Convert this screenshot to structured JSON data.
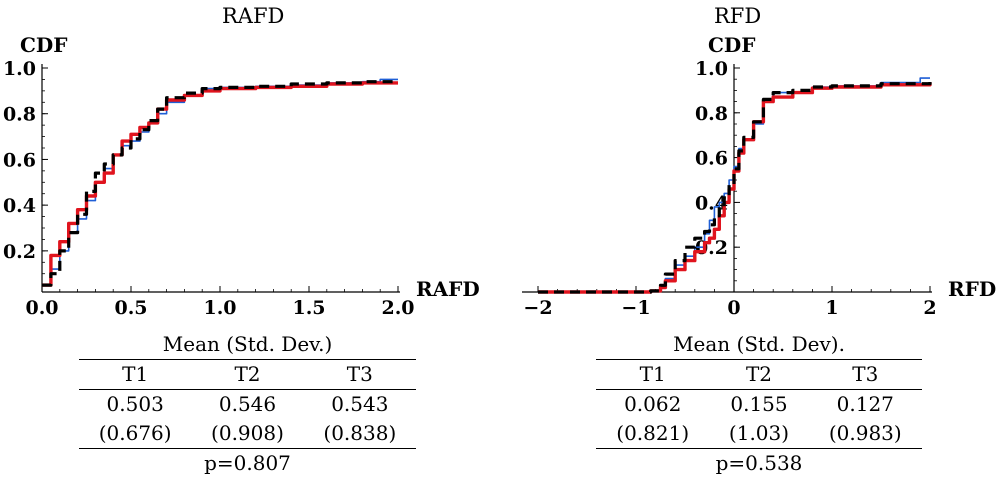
{
  "colors": {
    "series_a": "#1f5fd6",
    "series_b": "#e0141e",
    "series_c": "#000000"
  },
  "chart_data": [
    {
      "type": "line",
      "title": "RAFD",
      "xlabel": "RAFD",
      "ylabel": "CDF",
      "xlim": [
        0,
        2
      ],
      "ylim": [
        0.02,
        1.0
      ],
      "x_ticks": [
        "0.0",
        "0.5",
        "1.0",
        "1.5",
        "2.0"
      ],
      "y_ticks": [
        "0.2",
        "0.4",
        "0.6",
        "0.8",
        "1.0"
      ],
      "series": [
        {
          "color": "#1f5fd6",
          "style": "solid-thin",
          "x": [
            0,
            0.05,
            0.1,
            0.15,
            0.2,
            0.25,
            0.3,
            0.35,
            0.4,
            0.45,
            0.5,
            0.55,
            0.6,
            0.65,
            0.7,
            0.8,
            0.9,
            1.0,
            1.2,
            1.4,
            1.6,
            1.8,
            1.9,
            2.0
          ],
          "y": [
            0.05,
            0.12,
            0.2,
            0.28,
            0.34,
            0.42,
            0.5,
            0.56,
            0.62,
            0.66,
            0.68,
            0.72,
            0.76,
            0.8,
            0.85,
            0.88,
            0.91,
            0.915,
            0.92,
            0.925,
            0.935,
            0.94,
            0.95,
            0.95
          ]
        },
        {
          "color": "#e0141e",
          "style": "solid-thick",
          "x": [
            0,
            0.05,
            0.1,
            0.15,
            0.2,
            0.25,
            0.3,
            0.35,
            0.4,
            0.45,
            0.5,
            0.55,
            0.6,
            0.65,
            0.7,
            0.8,
            0.9,
            1.0,
            1.2,
            1.4,
            1.6,
            1.8,
            2.0
          ],
          "y": [
            0.05,
            0.18,
            0.24,
            0.32,
            0.38,
            0.44,
            0.5,
            0.54,
            0.62,
            0.68,
            0.71,
            0.74,
            0.76,
            0.82,
            0.86,
            0.88,
            0.9,
            0.91,
            0.915,
            0.92,
            0.93,
            0.935,
            0.935
          ]
        },
        {
          "color": "#000000",
          "style": "dashed",
          "x": [
            0,
            0.05,
            0.1,
            0.15,
            0.2,
            0.25,
            0.3,
            0.35,
            0.4,
            0.45,
            0.5,
            0.55,
            0.6,
            0.65,
            0.7,
            0.8,
            0.9,
            1.0,
            1.2,
            1.4,
            1.6,
            1.8,
            2.0
          ],
          "y": [
            0.05,
            0.1,
            0.2,
            0.28,
            0.36,
            0.46,
            0.54,
            0.58,
            0.62,
            0.65,
            0.69,
            0.73,
            0.77,
            0.82,
            0.87,
            0.89,
            0.91,
            0.915,
            0.92,
            0.93,
            0.935,
            0.94,
            0.94
          ]
        }
      ]
    },
    {
      "type": "line",
      "title": "RFD",
      "xlabel": "RFD",
      "ylabel": "CDF",
      "xlim": [
        -2,
        2
      ],
      "ylim": [
        0.0,
        1.0
      ],
      "x_ticks": [
        "−2",
        "−1",
        "0",
        "1",
        "2"
      ],
      "y_ticks": [
        "0.2",
        "0.4",
        "0.6",
        "0.8",
        "1.0"
      ],
      "series": [
        {
          "color": "#1f5fd6",
          "style": "solid-thin",
          "x": [
            -2,
            -1.5,
            -1,
            -0.85,
            -0.75,
            -0.7,
            -0.6,
            -0.5,
            -0.4,
            -0.3,
            -0.25,
            -0.2,
            -0.15,
            -0.1,
            -0.05,
            0,
            0.05,
            0.1,
            0.2,
            0.3,
            0.4,
            0.6,
            0.8,
            1.0,
            1.5,
            1.9,
            2.0
          ],
          "y": [
            0,
            0,
            0,
            0.005,
            0.02,
            0.06,
            0.12,
            0.16,
            0.2,
            0.26,
            0.32,
            0.38,
            0.4,
            0.44,
            0.5,
            0.56,
            0.64,
            0.68,
            0.75,
            0.86,
            0.89,
            0.89,
            0.915,
            0.92,
            0.935,
            0.955,
            0.955
          ]
        },
        {
          "color": "#e0141e",
          "style": "solid-thick",
          "x": [
            -2,
            -1.5,
            -1,
            -0.85,
            -0.75,
            -0.7,
            -0.6,
            -0.5,
            -0.4,
            -0.3,
            -0.25,
            -0.2,
            -0.15,
            -0.1,
            -0.05,
            0,
            0.05,
            0.1,
            0.2,
            0.3,
            0.4,
            0.6,
            0.8,
            1.0,
            1.5,
            2.0
          ],
          "y": [
            0,
            0,
            0,
            0.005,
            0.02,
            0.05,
            0.1,
            0.14,
            0.18,
            0.22,
            0.24,
            0.28,
            0.34,
            0.4,
            0.46,
            0.54,
            0.62,
            0.68,
            0.76,
            0.85,
            0.87,
            0.89,
            0.91,
            0.915,
            0.925,
            0.935
          ]
        },
        {
          "color": "#000000",
          "style": "dashed",
          "x": [
            -2,
            -1.5,
            -1,
            -0.85,
            -0.75,
            -0.7,
            -0.6,
            -0.5,
            -0.4,
            -0.3,
            -0.25,
            -0.2,
            -0.15,
            -0.1,
            -0.05,
            0,
            0.05,
            0.1,
            0.2,
            0.3,
            0.4,
            0.6,
            0.8,
            1.0,
            1.5,
            2.0
          ],
          "y": [
            0,
            0,
            0,
            0.005,
            0.03,
            0.08,
            0.14,
            0.2,
            0.24,
            0.27,
            0.3,
            0.34,
            0.38,
            0.42,
            0.48,
            0.55,
            0.63,
            0.69,
            0.76,
            0.86,
            0.89,
            0.9,
            0.915,
            0.92,
            0.93,
            0.94
          ]
        }
      ]
    }
  ],
  "tables": {
    "left": {
      "caption": "Mean (Std. Dev.)",
      "headers": [
        "T1",
        "T2",
        "T3"
      ],
      "means": [
        "0.503",
        "0.546",
        "0.543"
      ],
      "sds": [
        "(0.676)",
        "(0.908)",
        "(0.838)"
      ],
      "p_value": "p=0.807"
    },
    "right": {
      "caption": "Mean (Std. Dev).",
      "headers": [
        "T1",
        "T2",
        "T3"
      ],
      "means": [
        "0.062",
        "0.155",
        "0.127"
      ],
      "sds": [
        "(0.821)",
        "(1.03)",
        "(0.983)"
      ],
      "p_value": "p=0.538"
    }
  }
}
